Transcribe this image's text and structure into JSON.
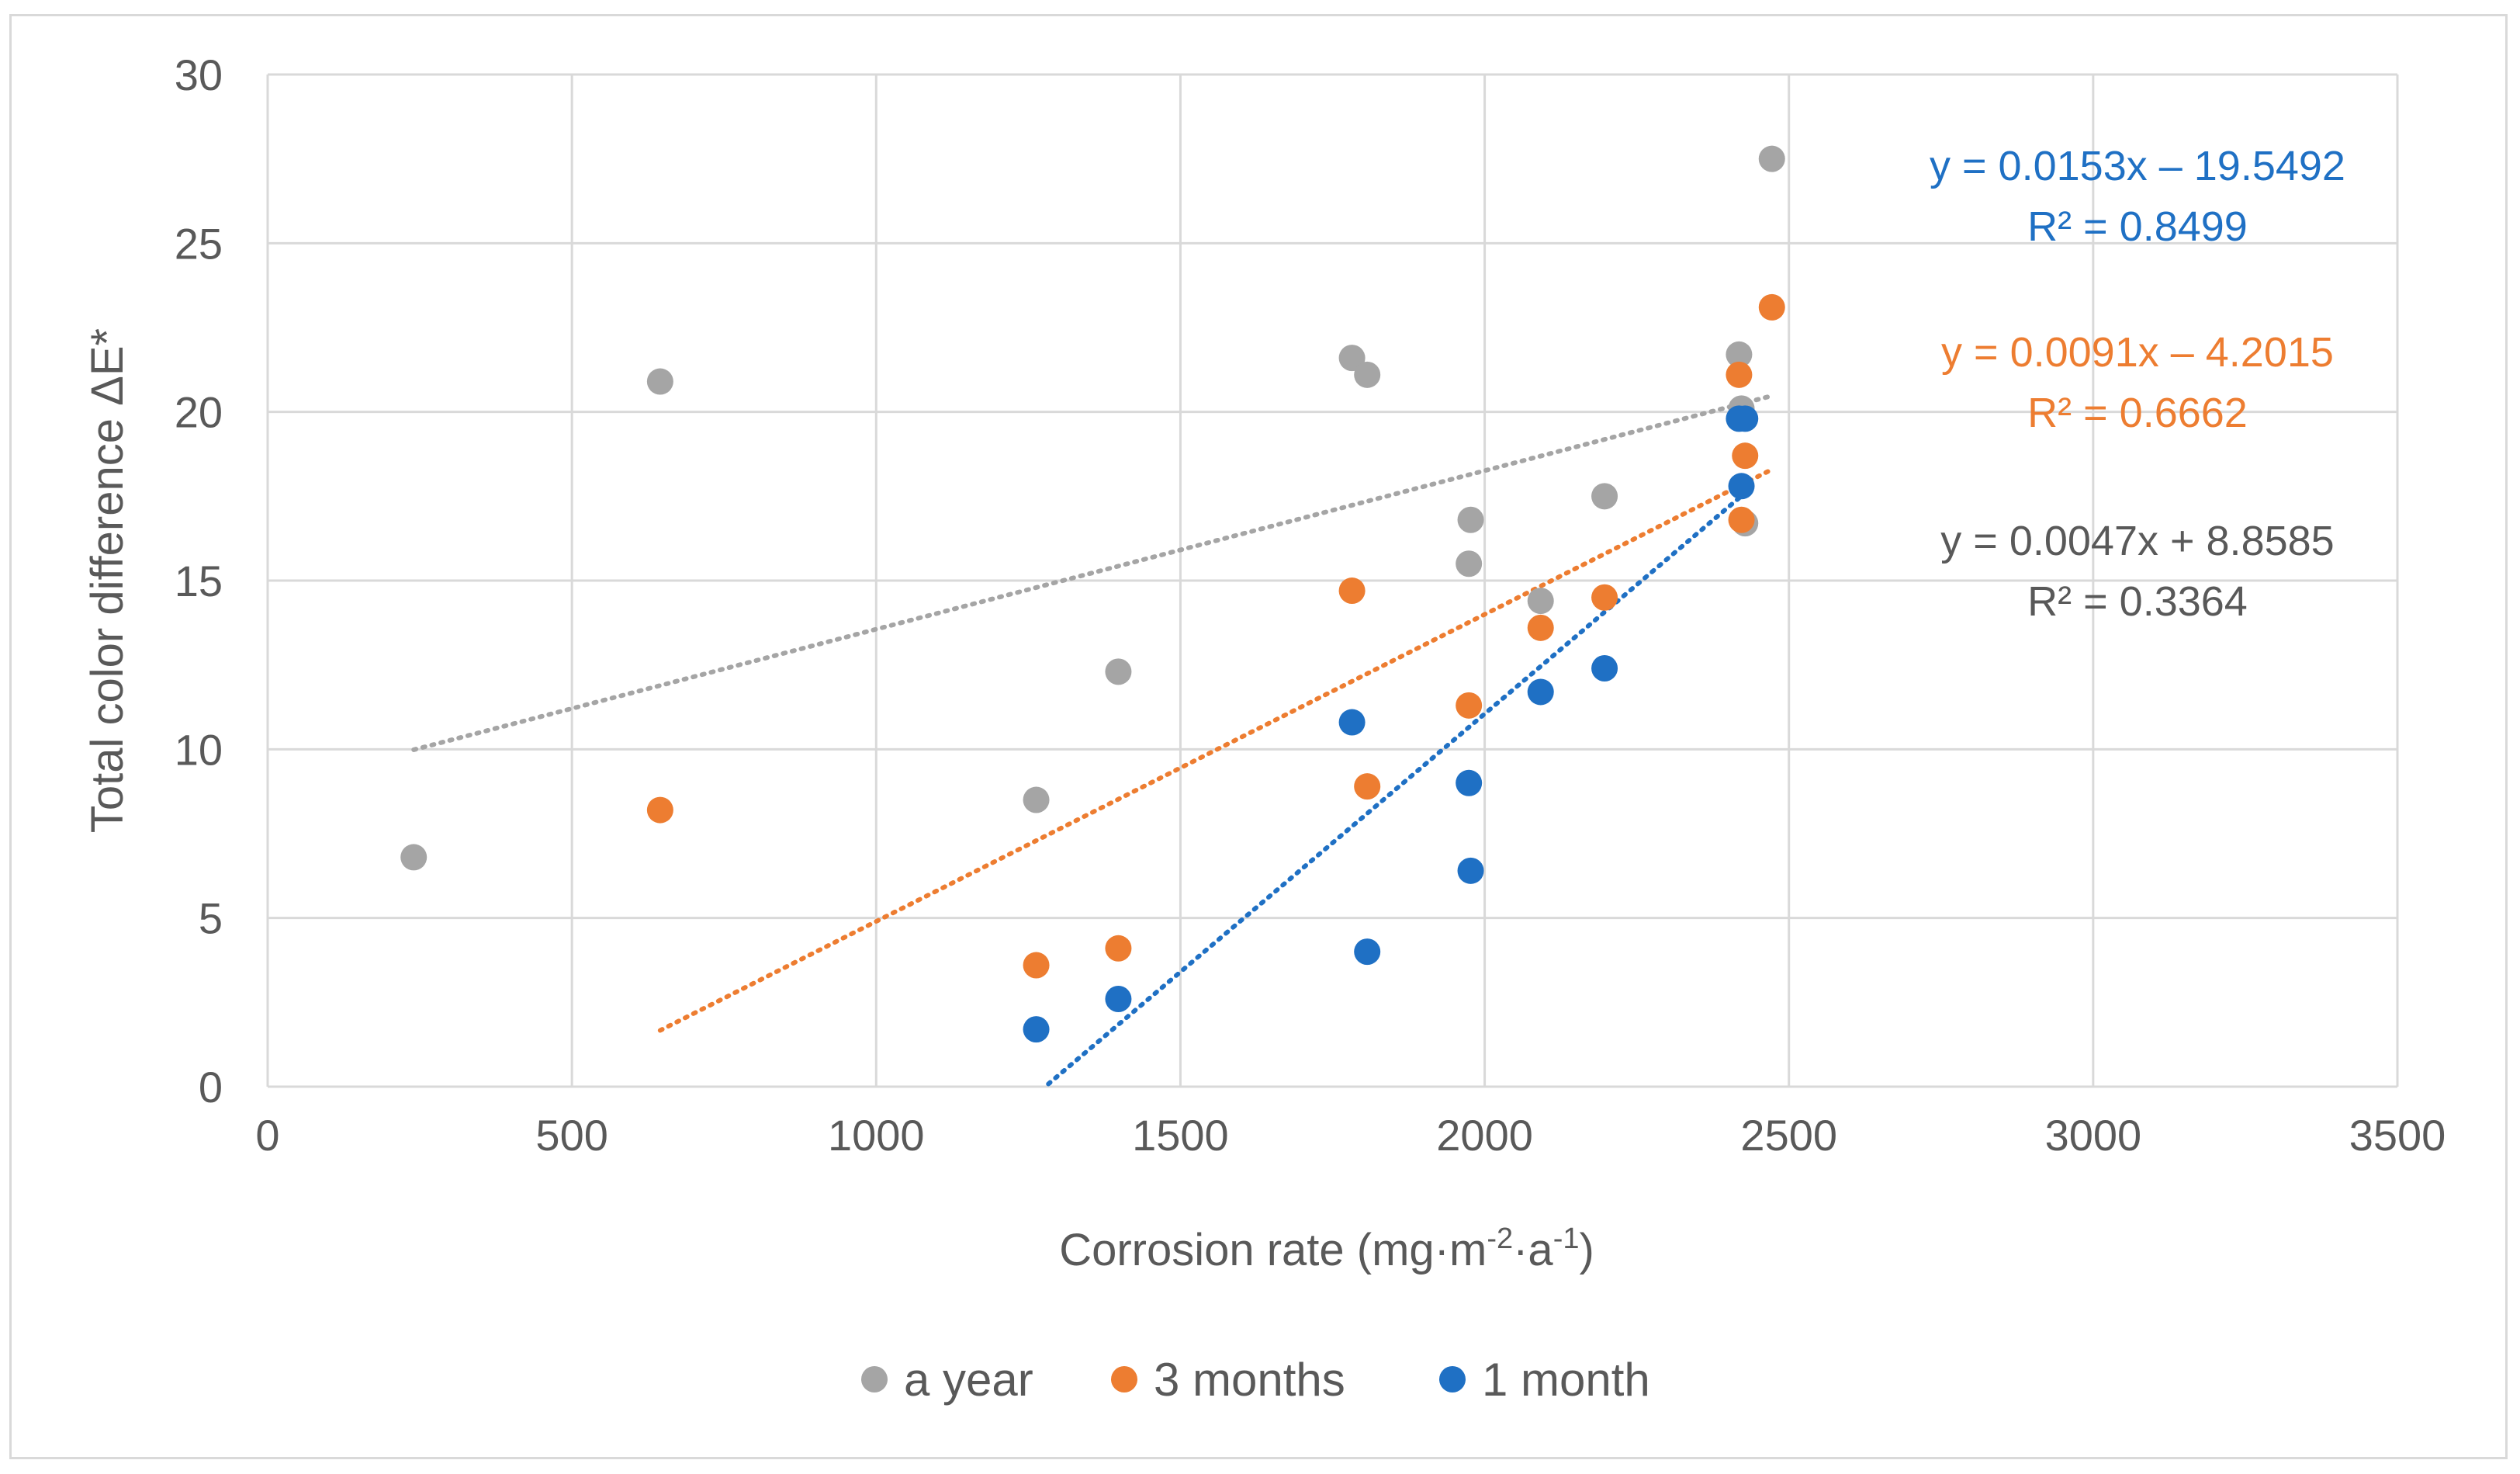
{
  "chart_data": {
    "type": "scatter",
    "title": "",
    "xlabel": "Corrosion rate (mg·m⁻²·a⁻¹)",
    "xlabel_parts": {
      "main": "Corrosion rate (mg·m",
      "sup1": "-2",
      "mid": "·a",
      "sup2": "-1",
      "end": ")"
    },
    "ylabel": "Total color difference ΔE*",
    "xlim": [
      0,
      3500
    ],
    "ylim": [
      0,
      30
    ],
    "xticks": [
      0,
      500,
      1000,
      1500,
      2000,
      2500,
      3000,
      3500
    ],
    "yticks": [
      0,
      5,
      10,
      15,
      20,
      25,
      30
    ],
    "grid": true,
    "legend_position": "bottom",
    "series": [
      {
        "name": "a year",
        "color": "#a5a5a5",
        "points": [
          [
            240,
            6.8
          ],
          [
            645,
            20.9
          ],
          [
            1263,
            8.5
          ],
          [
            1398,
            12.3
          ],
          [
            1782,
            21.6
          ],
          [
            1807,
            21.1
          ],
          [
            1974,
            15.5
          ],
          [
            1977,
            16.8
          ],
          [
            2092,
            14.4
          ],
          [
            2197,
            17.5
          ],
          [
            2418,
            21.7
          ],
          [
            2422,
            20.1
          ],
          [
            2428,
            16.7
          ],
          [
            2472,
            27.5
          ]
        ],
        "trendline": {
          "x_from": 240,
          "x_to": 2472,
          "slope": 0.0047,
          "intercept": 8.8585
        },
        "equation": "y = 0.0047x + 8.8585",
        "r2": "R² = 0.3364"
      },
      {
        "name": "3 months",
        "color": "#ed7d31",
        "points": [
          [
            645,
            8.2
          ],
          [
            1263,
            3.6
          ],
          [
            1398,
            4.1
          ],
          [
            1782,
            14.7
          ],
          [
            1807,
            8.9
          ],
          [
            1974,
            11.3
          ],
          [
            2092,
            13.6
          ],
          [
            2197,
            14.5
          ],
          [
            2418,
            21.1
          ],
          [
            2422,
            16.8
          ],
          [
            2428,
            18.7
          ],
          [
            2472,
            23.1
          ]
        ],
        "trendline": {
          "x_from": 645,
          "x_to": 2472,
          "slope": 0.0091,
          "intercept": -4.2015
        },
        "equation": "y = 0.0091x – 4.2015",
        "r2": "R² = 0.6662"
      },
      {
        "name": "1 month",
        "color": "#1f70c4",
        "points": [
          [
            1263,
            1.7
          ],
          [
            1398,
            2.6
          ],
          [
            1782,
            10.8
          ],
          [
            1807,
            4.0
          ],
          [
            1974,
            9.0
          ],
          [
            1977,
            6.4
          ],
          [
            2092,
            11.7
          ],
          [
            2197,
            12.4
          ],
          [
            2418,
            19.8
          ],
          [
            2422,
            17.8
          ],
          [
            2428,
            19.8
          ]
        ],
        "trendline": {
          "x_from": 1283,
          "x_to": 2428,
          "slope": 0.0153,
          "intercept": -19.5492
        },
        "equation": "y = 0.0153x – 19.5492",
        "r2": "R² = 0.8499"
      }
    ]
  }
}
